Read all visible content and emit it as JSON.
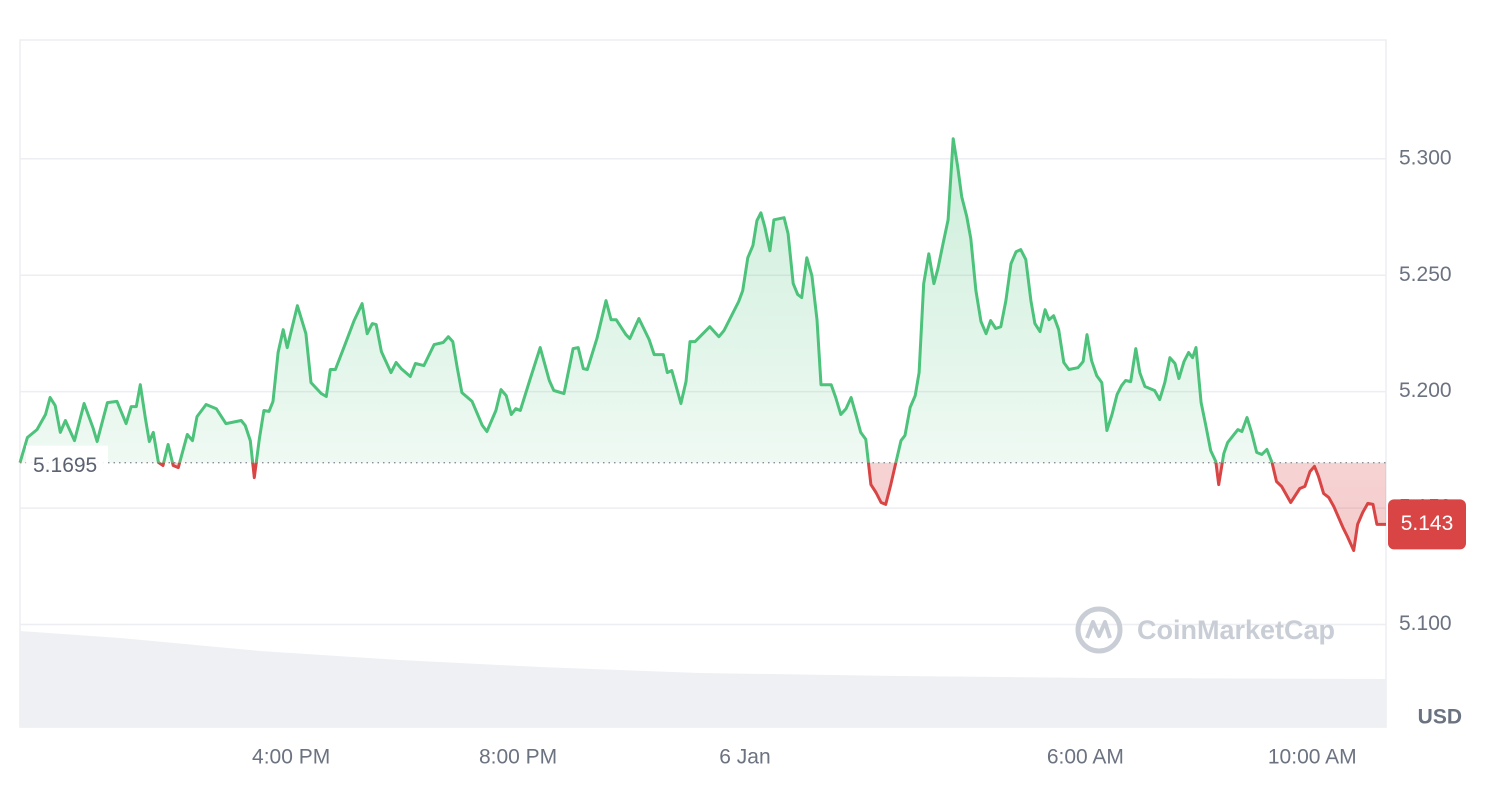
{
  "chart_data": {
    "type": "line",
    "x": [
      -12.78,
      -12.65,
      -12.48,
      -12.33,
      -12.25,
      -12.16,
      -12.07,
      -11.98,
      -11.82,
      -11.65,
      -11.49,
      -11.42,
      -11.24,
      -11.07,
      -10.91,
      -10.82,
      -10.73,
      -10.66,
      -10.57,
      -10.5,
      -10.43,
      -10.34,
      -10.26,
      -10.17,
      -10.08,
      -9.99,
      -9.83,
      -9.74,
      -9.66,
      -9.5,
      -9.32,
      -9.15,
      -8.88,
      -8.81,
      -8.72,
      -8.65,
      -8.56,
      -8.48,
      -8.39,
      -8.32,
      -8.23,
      -8.14,
      -8.07,
      -7.89,
      -7.74,
      -7.65,
      -7.47,
      -7.38,
      -7.31,
      -7.22,
      -7.05,
      -6.89,
      -6.75,
      -6.66,
      -6.57,
      -6.5,
      -6.41,
      -6.24,
      -6.15,
      -6.06,
      -5.9,
      -5.81,
      -5.66,
      -5.48,
      -5.32,
      -5.23,
      -5.15,
      -5.07,
      -4.99,
      -4.81,
      -4.63,
      -4.55,
      -4.39,
      -4.3,
      -4.21,
      -4.12,
      -4.04,
      -3.96,
      -3.79,
      -3.61,
      -3.45,
      -3.37,
      -3.19,
      -3.03,
      -2.94,
      -2.85,
      -2.78,
      -2.61,
      -2.45,
      -2.36,
      -2.27,
      -2.1,
      -2.03,
      -1.87,
      -1.69,
      -1.6,
      -1.44,
      -1.37,
      -1.29,
      -1.13,
      -1.04,
      -0.97,
      -0.88,
      -0.62,
      -0.46,
      -0.37,
      -0.11,
      -0.04,
      0.05,
      0.14,
      0.21,
      0.28,
      0.35,
      0.44,
      0.51,
      0.69,
      0.76,
      0.85,
      0.93,
      1.0,
      1.09,
      1.18,
      1.27,
      1.34,
      1.52,
      1.6,
      1.69,
      1.78,
      1.87,
      1.96,
      2.04,
      2.13,
      2.22,
      2.31,
      2.4,
      2.48,
      2.57,
      2.66,
      2.75,
      2.82,
      2.91,
      3.0,
      3.07,
      3.15,
      3.24,
      3.33,
      3.4,
      3.49,
      3.58,
      3.67,
      3.75,
      3.82,
      3.91,
      3.98,
      4.07,
      4.16,
      4.25,
      4.33,
      4.42,
      4.51,
      4.6,
      4.69,
      4.78,
      4.86,
      4.95,
      5.04,
      5.11,
      5.2,
      5.29,
      5.36,
      5.44,
      5.53,
      5.62,
      5.71,
      5.87,
      5.96,
      6.03,
      6.11,
      6.2,
      6.29,
      6.38,
      6.47,
      6.56,
      6.64,
      6.71,
      6.8,
      6.89,
      6.96,
      7.05,
      7.22,
      7.31,
      7.4,
      7.49,
      7.58,
      7.65,
      7.74,
      7.82,
      7.89,
      7.95,
      8.04,
      8.12,
      8.21,
      8.3,
      8.35,
      8.44,
      8.51,
      8.69,
      8.76,
      8.85,
      8.93,
      9.02,
      9.11,
      9.2,
      9.29,
      9.37,
      9.46,
      9.62,
      9.78,
      9.87,
      9.96,
      10.04,
      10.11,
      10.2,
      10.29,
      10.38,
      10.54,
      10.62,
      10.73,
      10.8,
      10.89,
      10.98,
      11.07,
      11.14,
      11.3
    ],
    "values": [
      5.1695,
      5.1803,
      5.1837,
      5.1902,
      5.1975,
      5.194,
      5.1825,
      5.1876,
      5.179,
      5.1949,
      5.1842,
      5.1786,
      5.1953,
      5.1958,
      5.1863,
      5.1936,
      5.1936,
      5.203,
      5.1885,
      5.1786,
      5.1825,
      5.1696,
      5.1683,
      5.1773,
      5.1683,
      5.1674,
      5.1816,
      5.179,
      5.1893,
      5.1945,
      5.1927,
      5.1863,
      5.1876,
      5.1855,
      5.179,
      5.1631,
      5.1799,
      5.1919,
      5.1915,
      5.1958,
      5.2168,
      5.2266,
      5.2189,
      5.2369,
      5.2249,
      5.2039,
      5.1992,
      5.1979,
      5.2095,
      5.2095,
      5.2202,
      5.2305,
      5.2378,
      5.2249,
      5.2292,
      5.2288,
      5.2172,
      5.2082,
      5.2125,
      5.2099,
      5.2065,
      5.2121,
      5.2112,
      5.2202,
      5.2211,
      5.2236,
      5.2215,
      5.2099,
      5.1996,
      5.1958,
      5.1855,
      5.1829,
      5.1919,
      5.2009,
      5.1983,
      5.1902,
      5.1927,
      5.1919,
      5.2052,
      5.2189,
      5.2048,
      5.2005,
      5.1992,
      5.2185,
      5.2189,
      5.2099,
      5.2095,
      5.2228,
      5.2391,
      5.2309,
      5.2309,
      5.2245,
      5.2228,
      5.2314,
      5.2224,
      5.2159,
      5.2159,
      5.2082,
      5.2091,
      5.1949,
      5.2043,
      5.2215,
      5.2215,
      5.2279,
      5.2236,
      5.2262,
      5.2387,
      5.2434,
      5.2575,
      5.2627,
      5.2734,
      5.2768,
      5.2708,
      5.2605,
      5.2738,
      5.2747,
      5.2678,
      5.2464,
      5.2417,
      5.2404,
      5.2575,
      5.2498,
      5.2309,
      5.203,
      5.203,
      5.1975,
      5.1902,
      5.1927,
      5.1975,
      5.1897,
      5.1825,
      5.1795,
      5.1601,
      5.1567,
      5.1524,
      5.1516,
      5.1601,
      5.1696,
      5.179,
      5.1812,
      5.1932,
      5.1983,
      5.2082,
      5.2464,
      5.2592,
      5.2464,
      5.2528,
      5.2635,
      5.2738,
      5.3086,
      5.2966,
      5.2837,
      5.2751,
      5.2657,
      5.2434,
      5.2301,
      5.2249,
      5.2305,
      5.2271,
      5.2279,
      5.2391,
      5.255,
      5.2601,
      5.261,
      5.2567,
      5.2391,
      5.2292,
      5.2258,
      5.2352,
      5.2309,
      5.2326,
      5.2266,
      5.2125,
      5.2095,
      5.2103,
      5.2129,
      5.2245,
      5.2133,
      5.2069,
      5.2039,
      5.1833,
      5.1902,
      5.1988,
      5.2026,
      5.2048,
      5.2043,
      5.2185,
      5.2082,
      5.2022,
      5.2005,
      5.1966,
      5.2039,
      5.2146,
      5.2121,
      5.2056,
      5.2129,
      5.2168,
      5.2146,
      5.2189,
      5.1953,
      5.1859,
      5.1747,
      5.17,
      5.1601,
      5.1734,
      5.1782,
      5.1837,
      5.1829,
      5.1889,
      5.1825,
      5.1739,
      5.173,
      5.1752,
      5.1696,
      5.1614,
      5.1593,
      5.1524,
      5.1584,
      5.1593,
      5.1657,
      5.1679,
      5.1636,
      5.1563,
      5.1546,
      5.1507,
      5.1417,
      5.1378,
      5.1318,
      5.143,
      5.1481,
      5.152,
      5.1516,
      5.143,
      5.143
    ],
    "reference_price": 5.1695,
    "up_color": "#4cc27b",
    "down_color": "#d94545",
    "xlim": [
      -12.78,
      11.3
    ],
    "xticks": [
      {
        "value": -8,
        "label": "4:00 PM"
      },
      {
        "value": -4,
        "label": "8:00 PM"
      },
      {
        "value": 0,
        "label": "6 Jan"
      },
      {
        "value": 6,
        "label": "6:00 AM"
      },
      {
        "value": 10,
        "label": "10:00 AM"
      }
    ],
    "ylim": [
      5.056,
      5.351
    ],
    "yticks": [
      {
        "value": 5.1,
        "label": "5.100"
      },
      {
        "value": 5.15,
        "label": "5.150"
      },
      {
        "value": 5.2,
        "label": "5.200"
      },
      {
        "value": 5.25,
        "label": "5.250"
      },
      {
        "value": 5.3,
        "label": "5.300"
      }
    ],
    "grid": true,
    "y_unit": "USD",
    "watermark": "CoinMarketCap"
  }
}
